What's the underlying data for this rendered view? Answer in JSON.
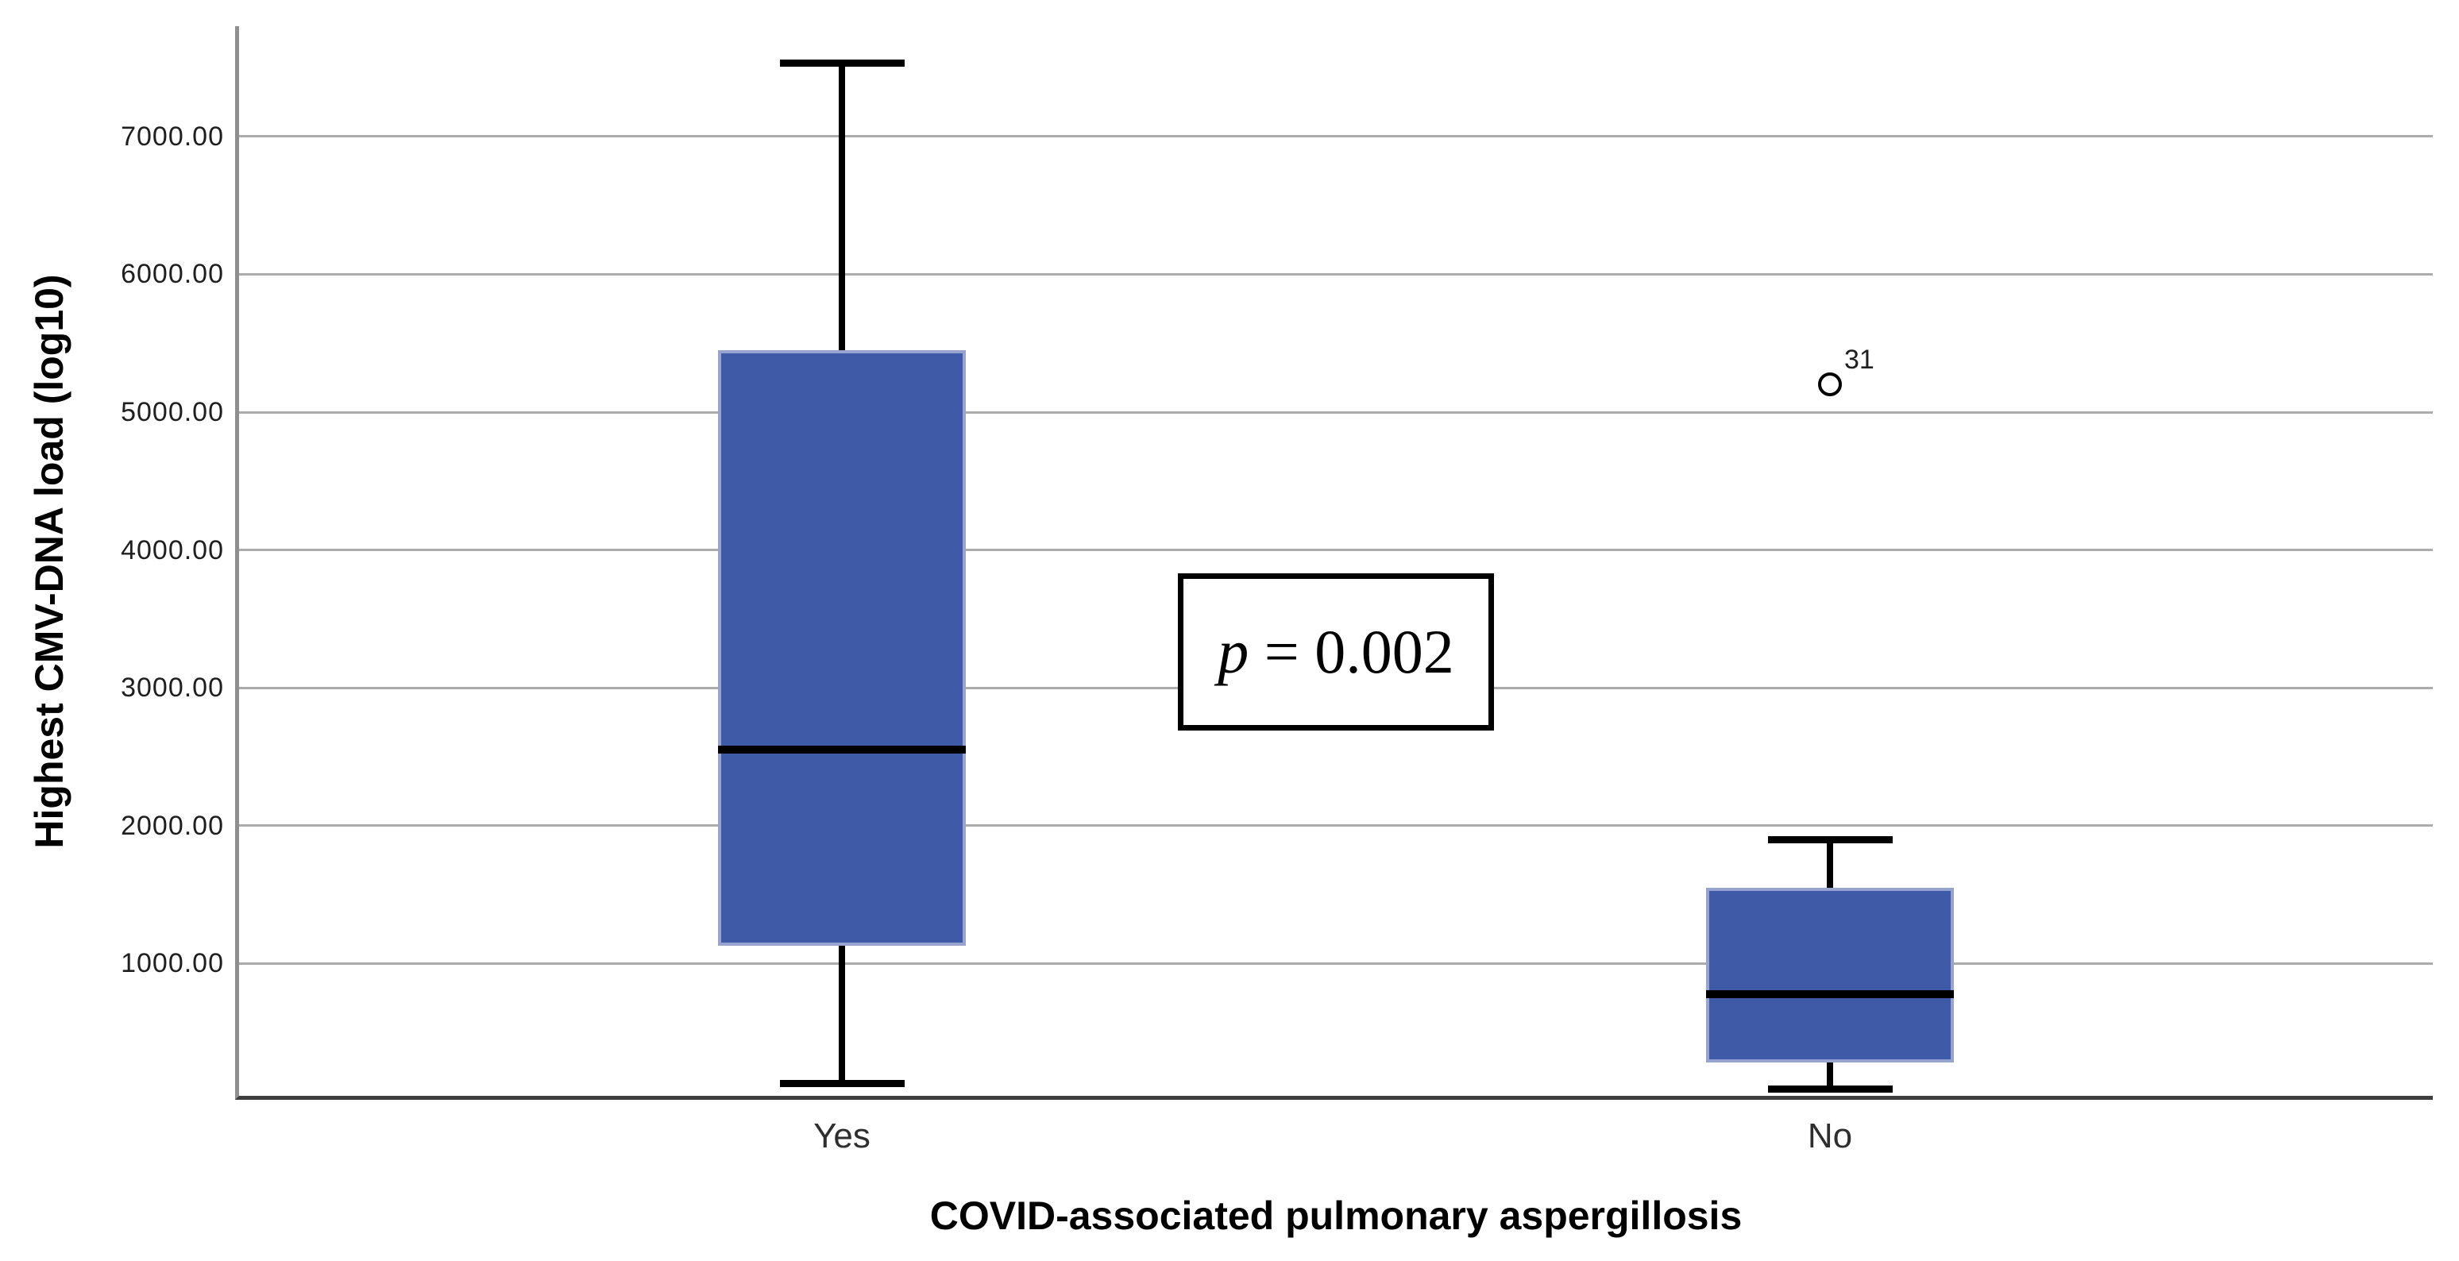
{
  "figure": {
    "background_color": "#ffffff"
  },
  "chart_data": {
    "type": "boxplot",
    "title": "",
    "xlabel": "COVID-associated pulmonary aspergillosis",
    "ylabel": "Highest CMV-DNA load (log10)",
    "categories": [
      "Yes",
      "No"
    ],
    "y_ticks": [
      1000,
      2000,
      3000,
      4000,
      5000,
      6000,
      7000
    ],
    "y_tick_labels": [
      "1000.00",
      "2000.00",
      "3000.00",
      "4000.00",
      "5000.00",
      "6000.00",
      "7000.00"
    ],
    "ylim": [
      40,
      7800
    ],
    "grid": "horizontal-only",
    "legend": "none",
    "series": [
      {
        "category": "Yes",
        "whisker_min": 130,
        "q1": 1130,
        "median": 2550,
        "q3": 5450,
        "whisker_max": 7530,
        "outliers": []
      },
      {
        "category": "No",
        "whisker_min": 90,
        "q1": 280,
        "median": 780,
        "q3": 1550,
        "whisker_max": 1900,
        "outliers": [
          {
            "label": "31",
            "value": 5200
          }
        ]
      }
    ],
    "annotations": [
      {
        "text_italic": "p",
        "text_rest": " = 0.002",
        "full_text": "p = 0.002",
        "y_center_value": 3230,
        "x_position": "midway between categories"
      }
    ],
    "colors": {
      "box_fill": "#3F5AA7",
      "box_border": "#97A4CF",
      "median": "#000000",
      "whisker": "#000000",
      "gridline": "#ACACAC",
      "axis_left": "#8F8F8F",
      "axis_bottom": "#3E3E3E",
      "tick_text": "#1F1F1F",
      "category_text": "#2E2E2E",
      "annotation_border": "#000000"
    }
  }
}
